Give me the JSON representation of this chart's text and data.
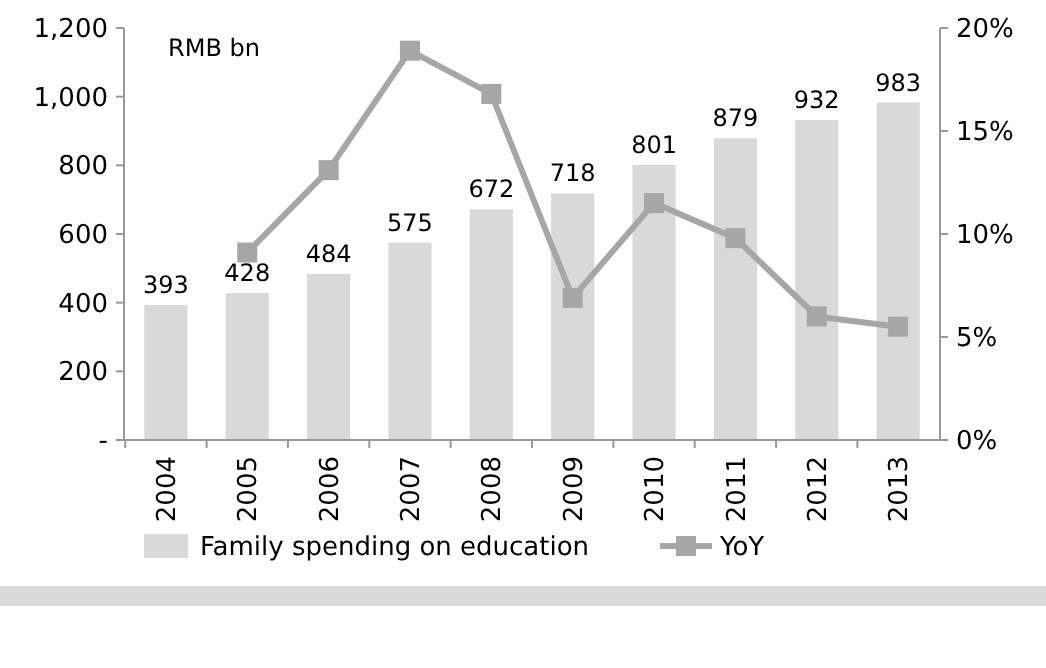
{
  "chart_data": {
    "type": "bar",
    "ylabel": "RMB bn",
    "categories": [
      "2004",
      "2005",
      "2006",
      "2007",
      "2008",
      "2009",
      "2010",
      "2011",
      "2012",
      "2013"
    ],
    "series": [
      {
        "name": "Family spending on education",
        "color": "#d9d9d9",
        "values": [
          393,
          428,
          484,
          575,
          672,
          718,
          801,
          879,
          932,
          983
        ],
        "value_labels": [
          "393",
          "428",
          "484",
          "575",
          "672",
          "718",
          "801",
          "879",
          "932",
          "983"
        ]
      },
      {
        "name": "YoY",
        "type": "line",
        "axis": "y2",
        "color": "#a6a6a6",
        "marker": "square",
        "values": [
          null,
          9.1,
          13.1,
          18.9,
          16.8,
          6.9,
          11.5,
          9.8,
          6.0,
          5.5
        ]
      }
    ],
    "ylim": [
      0,
      1200
    ],
    "yticks": [
      {
        "value": 0,
        "label": "-"
      },
      {
        "value": 200,
        "label": "200"
      },
      {
        "value": 400,
        "label": "400"
      },
      {
        "value": 600,
        "label": "600"
      },
      {
        "value": 800,
        "label": "800"
      },
      {
        "value": 1000,
        "label": "1,000"
      },
      {
        "value": 1200,
        "label": "1,200"
      }
    ],
    "y2lim": [
      0,
      20
    ],
    "y2ticks": [
      {
        "value": 0,
        "label": "0%"
      },
      {
        "value": 5,
        "label": "5%"
      },
      {
        "value": 10,
        "label": "10%"
      },
      {
        "value": 15,
        "label": "15%"
      },
      {
        "value": 20,
        "label": "20%"
      }
    ],
    "grid": false,
    "legend": "bottom"
  }
}
